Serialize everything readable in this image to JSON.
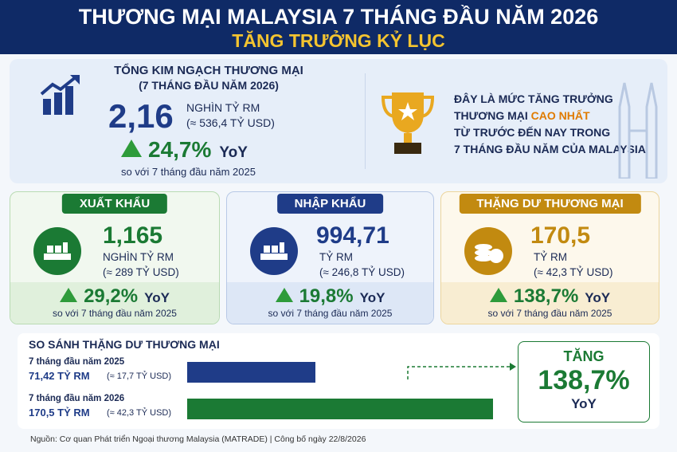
{
  "header": {
    "title": "THƯƠNG MẠI MALAYSIA 7 THÁNG ĐẦU NĂM 2026",
    "subtitle": "TĂNG TRƯỞNG KỶ LỤC"
  },
  "summary": {
    "title": "TỔNG KIM NGẠCH THƯƠNG MẠI",
    "period": "(7 THÁNG ĐẦU NĂM 2026)",
    "value": "2,16",
    "unit": "NGHÌN TỶ RM",
    "usd": "(≈ 536,4 TỶ USD)",
    "growth": "24,7%",
    "yoy": "YoY",
    "note": "so với 7 tháng đầu năm 2025"
  },
  "highlight": {
    "line1": "ĐÂY LÀ MỨC TĂNG TRƯỞNG",
    "line2": "THƯƠNG MẠI",
    "emphasis": "CAO NHẤT",
    "line3": "TỪ TRƯỚC ĐẾN NAY TRONG",
    "line4": "7 THÁNG ĐẦU NĂM CỦA MALAYSIA"
  },
  "cards": [
    {
      "label": "XUẤT KHẨU",
      "value": "1,165",
      "unit": "NGHÌN TỶ RM",
      "usd": "(≈ 289 TỶ USD)",
      "growth": "29,2%",
      "yoy": "YoY",
      "note": "so với 7 tháng đầu năm 2025"
    },
    {
      "label": "NHẬP KHẨU",
      "value": "994,71",
      "unit": "TỶ RM",
      "usd": "(≈ 246,8 TỶ USD)",
      "growth": "19,8%",
      "yoy": "YoY",
      "note": "so với 7 tháng đầu năm 2025"
    },
    {
      "label": "THẶNG DƯ THƯƠNG MẠI",
      "value": "170,5",
      "unit": "TỶ RM",
      "usd": "(≈ 42,3 TỶ USD)",
      "growth": "138,7%",
      "yoy": "YoY",
      "note": "so với 7 tháng đầu năm 2025"
    }
  ],
  "comparison": {
    "title": "SO SÁNH THẶNG DƯ THƯƠNG MẠI",
    "rows": [
      {
        "period": "7 tháng đầu năm 2025",
        "value": 71.42,
        "label": "71,42 TỶ RM",
        "usd": "(≈ 17,7 TỶ USD)",
        "color": "#1f3c88"
      },
      {
        "period": "7 tháng đầu năm 2026",
        "value": 170.5,
        "label": "170,5 TỶ RM",
        "usd": "(≈ 42,3 TỶ USD)",
        "color": "#1b7a34"
      }
    ],
    "result": {
      "title": "TĂNG",
      "value": "138,7%",
      "yoy": "YoY"
    }
  },
  "footer": {
    "source": "Nguồn: Cơ quan Phát triển Ngoại thương Malaysia (MATRADE)",
    "published": "Công bố ngày 22/8/2026"
  }
}
